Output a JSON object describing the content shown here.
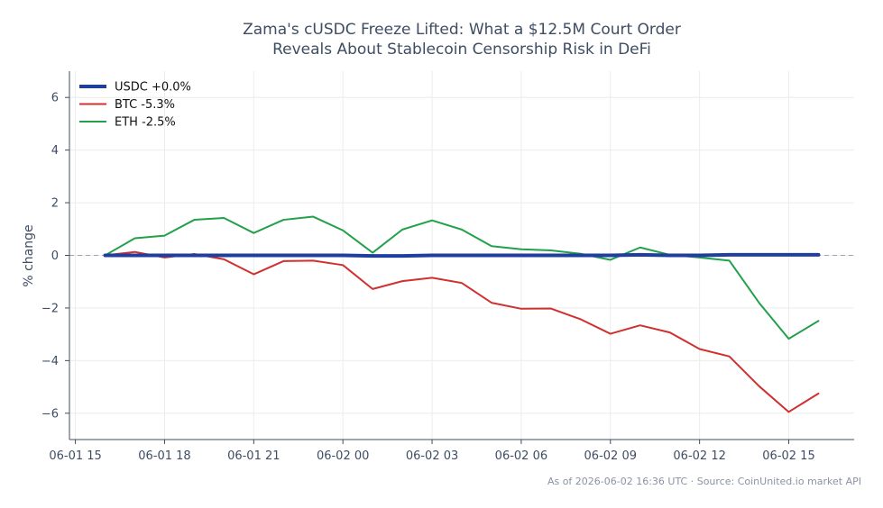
{
  "chart_data": {
    "type": "line",
    "title_lines": [
      "Zama's cUSDC Freeze Lifted: What a $12.5M Court Order",
      "Reveals About Stablecoin Censorship Risk in DeFi"
    ],
    "ylabel": "% change",
    "xlabel": "",
    "x_tick_labels": [
      "06-01 15",
      "06-01 18",
      "06-01 21",
      "06-02 00",
      "06-02 03",
      "06-02 06",
      "06-02 09",
      "06-02 12",
      "06-02 15"
    ],
    "x_tick_hours": [
      0,
      3,
      6,
      9,
      12,
      15,
      18,
      21,
      24
    ],
    "x_range_hours": [
      -0.2,
      26.2
    ],
    "y_ticks": [
      -6,
      -4,
      -2,
      0,
      2,
      4,
      6
    ],
    "ylim": [
      -7,
      7
    ],
    "grid": true,
    "zero_reference_line": true,
    "legend_position": "top-left",
    "x_hours": [
      1,
      2,
      3,
      4,
      5,
      6,
      7,
      8,
      9,
      10,
      11,
      12,
      13,
      14,
      15,
      16,
      17,
      18,
      19,
      20,
      21,
      22,
      23,
      24,
      25
    ],
    "series": [
      {
        "name": "USDC +0.0%",
        "color": "#1f3e9e",
        "width": 4,
        "values": [
          0.0,
          0.0,
          0.0,
          0.0,
          0.0,
          0.0,
          0.0,
          0.0,
          0.0,
          -0.02,
          -0.02,
          0.0,
          0.0,
          0.0,
          0.0,
          0.0,
          0.0,
          0.0,
          0.02,
          0.0,
          0.0,
          0.02,
          0.02,
          0.02,
          0.02
        ]
      },
      {
        "name": "BTC -5.3%",
        "color": "#d03030",
        "width": 2,
        "values": [
          0.0,
          0.13,
          -0.08,
          0.05,
          -0.15,
          -0.72,
          -0.22,
          -0.2,
          -0.37,
          -1.28,
          -0.98,
          -0.85,
          -1.05,
          -1.8,
          -2.03,
          -2.02,
          -2.43,
          -2.98,
          -2.66,
          -2.93,
          -3.56,
          -3.84,
          -4.97,
          -5.95,
          -5.25
        ]
      },
      {
        "name": "ETH -2.5%",
        "color": "#22a04a",
        "width": 2,
        "values": [
          0.0,
          0.65,
          0.75,
          1.35,
          1.42,
          0.85,
          1.35,
          1.47,
          0.95,
          0.1,
          0.98,
          1.33,
          0.98,
          0.35,
          0.23,
          0.19,
          0.06,
          -0.17,
          0.3,
          0.02,
          -0.08,
          -0.2,
          -1.8,
          -3.17,
          -2.49
        ]
      }
    ],
    "footer": "As of 2026-06-02 16:36 UTC · Source: CoinUnited.io market API"
  }
}
